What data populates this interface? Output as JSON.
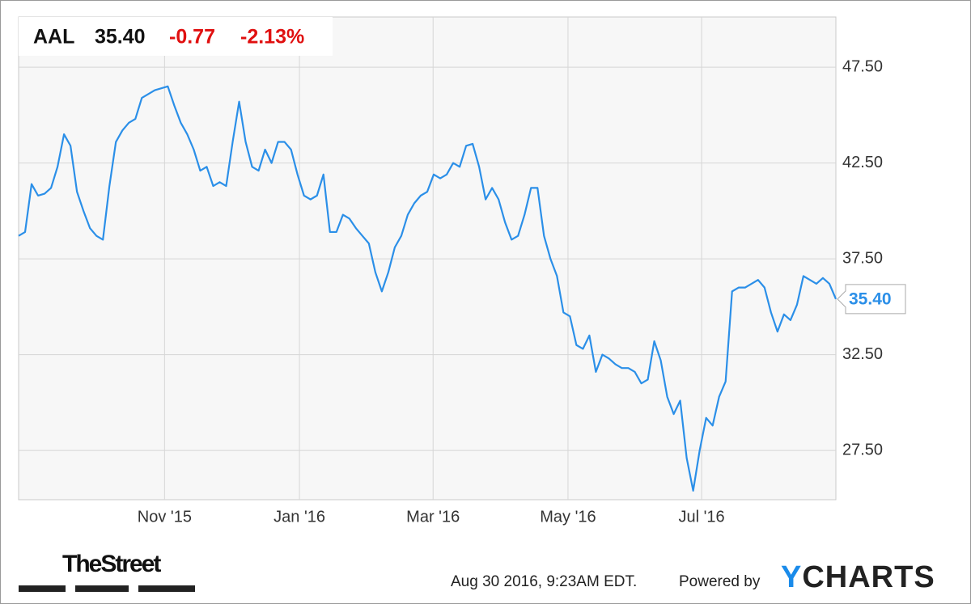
{
  "chart_data": {
    "type": "line",
    "ticker": "AAL",
    "price": "35.40",
    "change": "-0.77",
    "change_pct": "-2.13%",
    "series": [
      {
        "color": "#2b8fe8",
        "values": [
          38.7,
          38.9,
          41.4,
          40.8,
          40.9,
          41.2,
          42.3,
          44.0,
          43.4,
          41.0,
          40.0,
          39.1,
          38.7,
          38.5,
          41.3,
          43.6,
          44.2,
          44.6,
          44.8,
          45.9,
          46.1,
          46.3,
          46.4,
          46.5,
          45.5,
          44.6,
          44.0,
          43.2,
          42.1,
          42.3,
          41.3,
          41.5,
          41.3,
          43.6,
          45.7,
          43.6,
          42.3,
          42.1,
          43.2,
          42.5,
          43.6,
          43.6,
          43.2,
          41.9,
          40.8,
          40.6,
          40.8,
          41.9,
          38.9,
          38.9,
          39.8,
          39.6,
          39.1,
          38.7,
          38.3,
          36.8,
          35.8,
          36.8,
          38.1,
          38.7,
          39.8,
          40.4,
          40.8,
          41.0,
          41.9,
          41.7,
          41.9,
          42.5,
          42.3,
          43.4,
          43.5,
          42.3,
          40.6,
          41.2,
          40.6,
          39.4,
          38.5,
          38.7,
          39.8,
          41.2,
          41.2,
          38.7,
          37.5,
          36.6,
          34.7,
          34.5,
          33.0,
          32.8,
          33.5,
          31.6,
          32.5,
          32.3,
          32.0,
          31.8,
          31.8,
          31.6,
          31.0,
          31.2,
          33.2,
          32.2,
          30.3,
          29.4,
          30.1,
          27.1,
          25.4,
          27.5,
          29.2,
          28.8,
          30.3,
          31.1,
          35.8,
          36.0,
          36.0,
          36.2,
          36.4,
          36.0,
          34.7,
          33.7,
          34.6,
          34.3,
          35.1,
          36.6,
          36.4,
          36.2,
          36.5,
          36.2,
          35.4
        ]
      }
    ],
    "xlim": [
      0,
      126
    ],
    "xticks": [
      {
        "value": 22.5,
        "label": "Nov '15"
      },
      {
        "value": 43.3,
        "label": "Jan '16"
      },
      {
        "value": 63.9,
        "label": "Mar '16"
      },
      {
        "value": 84.7,
        "label": "May '16"
      },
      {
        "value": 105.3,
        "label": "Jul '16"
      }
    ],
    "ylim": [
      24.93,
      50.12
    ],
    "yticks": [
      {
        "value": 27.5,
        "label": "27.50"
      },
      {
        "value": 32.5,
        "label": "32.50"
      },
      {
        "value": 37.5,
        "label": "37.50"
      },
      {
        "value": 42.5,
        "label": "42.50"
      },
      {
        "value": 47.5,
        "label": "47.50"
      }
    ],
    "grid": true,
    "source": "TheStreet",
    "timestamp": "Aug 30 2016, 9:23AM EDT.",
    "powered_by": "Powered by",
    "brand": "YCHARTS"
  }
}
